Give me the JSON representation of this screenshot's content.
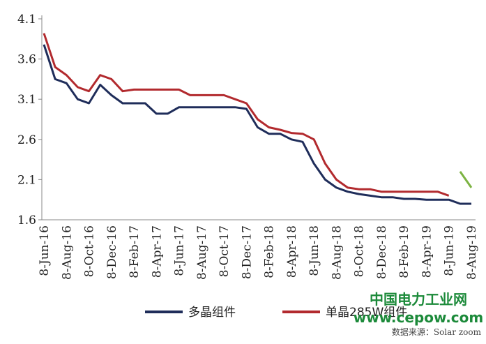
{
  "chart_data": {
    "type": "line",
    "categories": [
      "8-Jun-16",
      null,
      "8-Aug-16",
      null,
      "8-Oct-16",
      null,
      "8-Dec-16",
      null,
      "8-Feb-17",
      null,
      "8-Apr-17",
      null,
      "8-Jun-17",
      null,
      "8-Aug-17",
      null,
      "8-Oct-17",
      null,
      "8-Dec-17",
      null,
      "8-Feb-18",
      null,
      "8-Apr-18",
      null,
      "8-Jun-18",
      null,
      "8-Aug-18",
      null,
      "8-Oct-18",
      null,
      "8-Dec-18",
      null,
      "8-Feb-19",
      null,
      "8-Apr-19",
      null,
      "8-Jun-19",
      null,
      "8-Aug-19"
    ],
    "series": [
      {
        "name": "多晶组件",
        "color": "#1f2d5a",
        "values": [
          3.78,
          3.35,
          3.3,
          3.1,
          3.05,
          3.28,
          3.15,
          3.05,
          3.05,
          3.05,
          2.92,
          2.92,
          3.0,
          3.0,
          3.0,
          3.0,
          3.0,
          3.0,
          2.98,
          2.75,
          2.67,
          2.67,
          2.6,
          2.57,
          2.3,
          2.1,
          2.0,
          1.95,
          1.92,
          1.9,
          1.88,
          1.88,
          1.86,
          1.86,
          1.85,
          1.85,
          1.85,
          1.8,
          1.8
        ]
      },
      {
        "name": "单晶285W组件",
        "color": "#b22a2e",
        "values": [
          3.92,
          3.5,
          3.4,
          3.25,
          3.2,
          3.4,
          3.35,
          3.2,
          3.22,
          3.22,
          3.22,
          3.22,
          3.22,
          3.15,
          3.15,
          3.15,
          3.15,
          3.1,
          3.05,
          2.85,
          2.75,
          2.72,
          2.68,
          2.67,
          2.6,
          2.3,
          2.1,
          2.0,
          1.98,
          1.98,
          1.95,
          1.95,
          1.95,
          1.95,
          1.95,
          1.95,
          1.9,
          null,
          null
        ]
      },
      {
        "color": "#7cb342",
        "values": [
          null,
          null,
          null,
          null,
          null,
          null,
          null,
          null,
          null,
          null,
          null,
          null,
          null,
          null,
          null,
          null,
          null,
          null,
          null,
          null,
          null,
          null,
          null,
          null,
          null,
          null,
          null,
          null,
          null,
          null,
          null,
          null,
          null,
          null,
          null,
          null,
          null,
          2.2,
          2.0
        ]
      }
    ],
    "ylim": [
      1.6,
      4.1
    ],
    "yticks": [
      1.6,
      2.1,
      2.6,
      3.1,
      3.6,
      4.1
    ],
    "annotations": [
      "中国电力工业网",
      "www.cepow.com",
      "数据来源：Solar zoom"
    ]
  }
}
